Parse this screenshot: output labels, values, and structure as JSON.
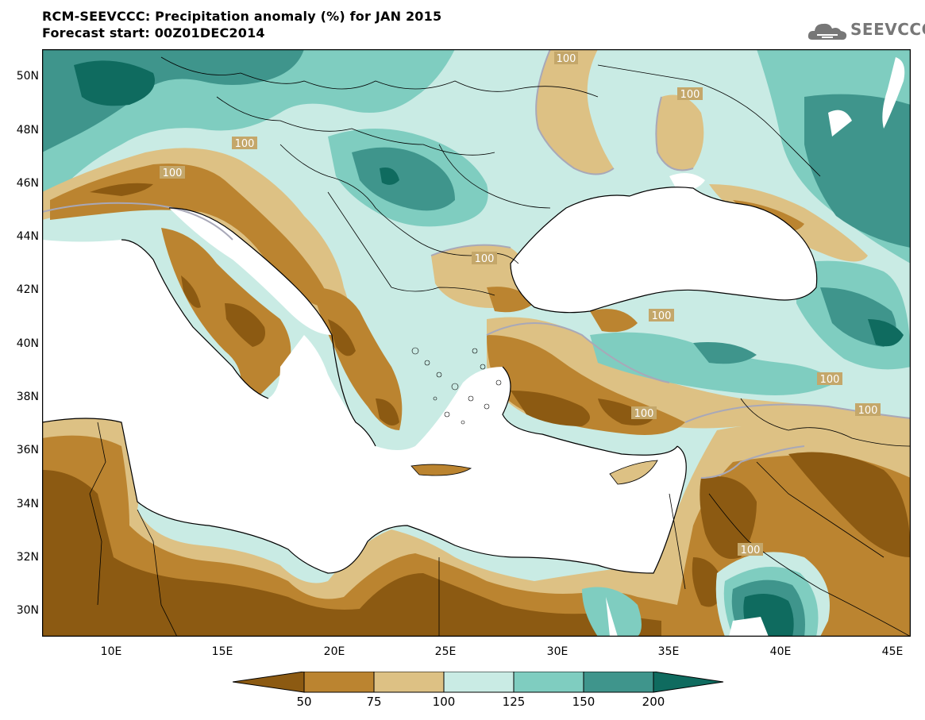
{
  "header": {
    "title_line1": "RCM-SEEVCCC: Precipitation anomaly (%) for JAN 2015",
    "title_line2": "Forecast start: 00Z01DEC2014"
  },
  "logo": {
    "text": "SEEVCCC",
    "icon": "cloud-icon"
  },
  "map": {
    "lat_labels": [
      "50N",
      "48N",
      "46N",
      "44N",
      "42N",
      "40N",
      "38N",
      "36N",
      "34N",
      "32N",
      "30N"
    ],
    "lon_labels": [
      "10E",
      "15E",
      "20E",
      "25E",
      "30E",
      "35E",
      "40E",
      "45E"
    ],
    "contour_labels": [
      "100",
      "100",
      "100",
      "100",
      "100",
      "100",
      "100",
      "100",
      "100",
      "100"
    ]
  },
  "colorbar": {
    "labels": [
      "50",
      "75",
      "100",
      "125",
      "150",
      "200"
    ],
    "colors": [
      "#8c5a12",
      "#bb8430",
      "#ddc184",
      "#c9ebe4",
      "#7fcdc0",
      "#3f958c",
      "#0f6b5f"
    ]
  }
}
